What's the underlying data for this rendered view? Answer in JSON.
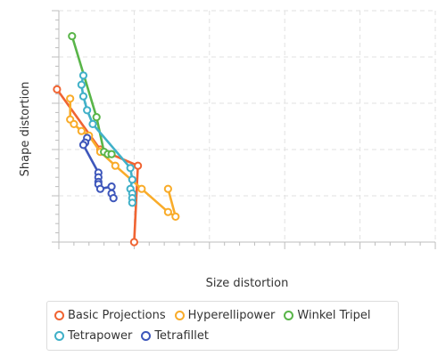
{
  "chart_data": {
    "type": "line",
    "title": "",
    "xlabel": "Size distortion",
    "ylabel": "Shape distortion",
    "xlim": [
      0,
      10
    ],
    "ylim": [
      0,
      5
    ],
    "grid": true,
    "legend_position": "bottom",
    "series": [
      {
        "name": "Basic Projections",
        "color": "#f06432",
        "points": [
          [
            -0.05,
            3.3
          ],
          [
            1.1,
            2.0
          ],
          [
            2.1,
            1.65
          ],
          [
            2.0,
            0.0
          ]
        ]
      },
      {
        "name": "Hyperellipower",
        "color": "#f9ac2a",
        "points": [
          [
            0.3,
            3.1
          ],
          [
            0.3,
            2.65
          ],
          [
            0.4,
            2.55
          ],
          [
            0.6,
            2.4
          ],
          [
            0.8,
            2.3
          ],
          [
            1.1,
            1.95
          ],
          [
            1.5,
            1.65
          ],
          [
            2.2,
            1.15
          ],
          [
            2.9,
            0.65
          ],
          [
            3.1,
            0.55
          ],
          [
            2.9,
            1.15
          ]
        ]
      },
      {
        "name": "Winkel Tripel",
        "color": "#59b549",
        "points": [
          [
            0.35,
            4.45
          ],
          [
            1.0,
            2.7
          ],
          [
            1.2,
            1.95
          ],
          [
            1.3,
            1.9
          ],
          [
            1.4,
            1.9
          ]
        ]
      },
      {
        "name": "Tetrapower",
        "color": "#40b0c8",
        "points": [
          [
            0.65,
            3.6
          ],
          [
            0.6,
            3.4
          ],
          [
            0.65,
            3.15
          ],
          [
            0.75,
            2.85
          ],
          [
            0.9,
            2.55
          ],
          [
            1.9,
            1.6
          ],
          [
            1.95,
            1.35
          ],
          [
            1.9,
            1.15
          ],
          [
            1.95,
            1.05
          ],
          [
            1.95,
            0.95
          ],
          [
            1.95,
            0.85
          ]
        ]
      },
      {
        "name": "Tetrafillet",
        "color": "#3e57bb",
        "points": [
          [
            0.75,
            2.25
          ],
          [
            0.7,
            2.15
          ],
          [
            0.65,
            2.1
          ],
          [
            1.05,
            1.5
          ],
          [
            1.05,
            1.4
          ],
          [
            1.05,
            1.3
          ],
          [
            1.05,
            1.25
          ],
          [
            1.1,
            1.15
          ],
          [
            1.4,
            1.2
          ],
          [
            1.4,
            1.05
          ],
          [
            1.45,
            0.95
          ]
        ]
      }
    ]
  }
}
